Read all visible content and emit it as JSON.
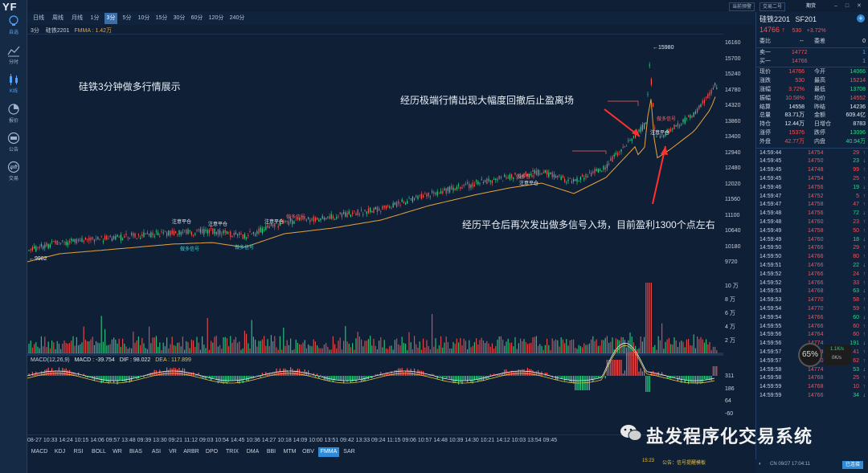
{
  "app": {
    "logo": "YF"
  },
  "sidebar": {
    "items": [
      {
        "label": "自选",
        "icon": "lightbulb-icon",
        "active": true
      },
      {
        "label": "分时",
        "icon": "timeshare-icon"
      },
      {
        "label": "K线",
        "icon": "candlestick-icon",
        "active": true
      },
      {
        "label": "报价",
        "icon": "pie-icon"
      },
      {
        "label": "公告",
        "icon": "notice-icon"
      },
      {
        "label": "交易",
        "icon": "trade-icon"
      }
    ]
  },
  "topbar": {
    "btn1": "当前预警",
    "btn2": "交易二号",
    "btn3": "期货"
  },
  "toolbar": {
    "periods": [
      "日线",
      "周线",
      "月线",
      "1分",
      "3分",
      "5分",
      "10分",
      "15分",
      "30分",
      "60分",
      "120分",
      "240分"
    ],
    "active": "3分"
  },
  "chart": {
    "contract": "3分",
    "name": "硅铁2201",
    "fmma_label": "FMMA : 1.42万",
    "high_marker": "15980",
    "low_marker": "9982",
    "y_labels": [
      "16160",
      "15700",
      "15240",
      "14780",
      "14320",
      "13860",
      "13400",
      "12940",
      "12480",
      "12020",
      "11560",
      "11100",
      "10640",
      "10180",
      "9720"
    ],
    "vol_labels": [
      "10 万",
      "8 万",
      "6 万",
      "4 万",
      "2 万"
    ],
    "macd_labels": [
      "311",
      "186",
      "64",
      "-60"
    ],
    "annotations": {
      "title": "硅铁3分钟做多行情展示",
      "a1": "经历极端行情出现大幅度回撤后止盈离场",
      "a2": "经历平仓后再次发出做多信号入场，目前盈利1300个点左右"
    },
    "signals": {
      "close": "注意平仓",
      "long": "做多信号"
    }
  },
  "macd": {
    "title": "MACD(12,26,9)",
    "macd": "MACD : -39.754",
    "dif": "DIF : 98.022",
    "dea": "DEA : 117.899"
  },
  "time_axis": "08-27 10:33 14:24 10:15 14:06 09:57 13:48 09:39 13:30 09:21 11:12 09:03 10:54 14:45 10:36 14:27 10:18 14:09 10:00 13:51 09:42 13:33 09:24 11:15 09:06 10:57 14:48 10:39 14:30 10:21 14:12 10:03 13:54 09:45",
  "indicators": [
    "MACD",
    "KDJ",
    "RSI",
    "BOLL",
    "WR",
    "BIAS",
    "ASI",
    "VR",
    "ARBR",
    "DPO",
    "TRIX",
    "DMA",
    "BBI",
    "MTM",
    "OBV",
    "FMMA",
    "SAR"
  ],
  "indicator_active": "FMMA",
  "status": {
    "time": "15:23",
    "note": "公告：",
    "note2": "信号提醒模板"
  },
  "quote": {
    "name": "硅铁2201",
    "code": "SF201",
    "price": "14766",
    "change": "530",
    "pct": "+3.72%",
    "wb_label": "委比",
    "wb": "--",
    "wc_label": "委差",
    "wc": "0",
    "ask_label": "卖一",
    "ask": "14772",
    "ask_vol": "1",
    "bid_label": "买一",
    "bid": "14766",
    "bid_vol": "1",
    "stats": [
      [
        "现价",
        "14766",
        "今开",
        "14066"
      ],
      [
        "涨跌",
        "530",
        "最高",
        "15214"
      ],
      [
        "涨幅",
        "3.72%",
        "最低",
        "13708"
      ],
      [
        "振幅",
        "10.58%",
        "均价",
        "14552"
      ],
      [
        "结算",
        "14558",
        "昨结",
        "14236"
      ],
      [
        "总量",
        "83.71万",
        "金额",
        "609.4亿"
      ],
      [
        "持仓",
        "12.44万",
        "日增仓",
        "8783"
      ],
      [
        "涨停",
        "15376",
        "跌停",
        "13096"
      ],
      [
        "外盘",
        "42.77万",
        "内盘",
        "40.94万"
      ]
    ],
    "ticks": [
      [
        "14:59:44",
        "14754",
        "29"
      ],
      [
        "14:59:45",
        "14750",
        "23"
      ],
      [
        "14:59:45",
        "14748",
        "99"
      ],
      [
        "14:59:45",
        "14754",
        "25"
      ],
      [
        "14:59:46",
        "14756",
        "19"
      ],
      [
        "14:59:47",
        "14752",
        "5"
      ],
      [
        "14:59:47",
        "14758",
        "47"
      ],
      [
        "14:59:48",
        "14756",
        "72"
      ],
      [
        "14:59:48",
        "14760",
        "23"
      ],
      [
        "14:59:49",
        "14758",
        "50"
      ],
      [
        "14:59:49",
        "14760",
        "18"
      ],
      [
        "14:59:50",
        "14766",
        "29"
      ],
      [
        "14:59:50",
        "14766",
        "80"
      ],
      [
        "14:59:51",
        "14766",
        "22"
      ],
      [
        "14:59:52",
        "14766",
        "24"
      ],
      [
        "14:59:52",
        "14766",
        "33"
      ],
      [
        "14:59:53",
        "14768",
        "63"
      ],
      [
        "14:59:53",
        "14770",
        "58"
      ],
      [
        "14:59:54",
        "14770",
        "59"
      ],
      [
        "14:59:54",
        "14766",
        "60"
      ],
      [
        "14:59:55",
        "14766",
        "60"
      ],
      [
        "14:59:56",
        "14764",
        "60"
      ],
      [
        "14:59:56",
        "14774",
        "191"
      ],
      [
        "14:59:57",
        "14774",
        "41"
      ],
      [
        "14:59:57",
        "14770",
        "62"
      ],
      [
        "14:59:58",
        "14774",
        "53"
      ],
      [
        "14:59:58",
        "14768",
        "25"
      ],
      [
        "14:59:59",
        "14768",
        "10"
      ],
      [
        "14:59:59",
        "14766",
        "34"
      ]
    ]
  },
  "gauge": {
    "value": "65%",
    "up": "1.1K/s",
    "down": "0K/s"
  },
  "watermark": "盐发程序化交易系统",
  "footer": {
    "date": "CN 09/27 17:04:11",
    "btn": "已连接"
  }
}
